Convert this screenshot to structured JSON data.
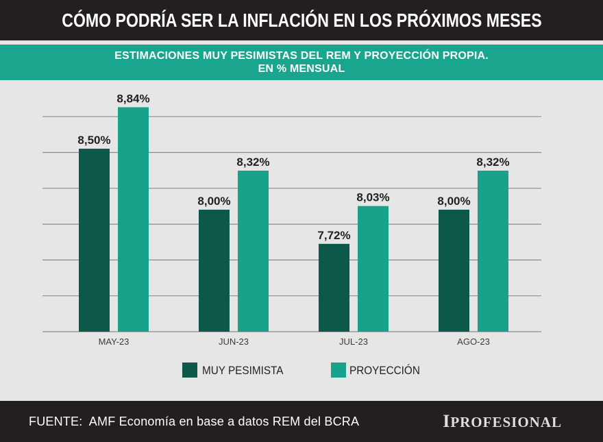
{
  "theme": {
    "header_bg": "#231f20",
    "accent": "#1aa68e",
    "chart_bg": "#e6e6e6",
    "grid": "#8c8c8c"
  },
  "chart_data": {
    "type": "bar",
    "title": "CÓMO PODRÍA SER LA INFLACIÓN EN LOS PRÓXIMOS MESES",
    "subtitle": [
      "ESTIMACIONES MUY PESIMISTAS DEL REM Y PROYECCIÓN PROPIA.",
      "EN % MENSUAL"
    ],
    "categories": [
      "MAY-23",
      "JUN-23",
      "JUL-23",
      "AGO-23"
    ],
    "series": [
      {
        "name": "MUY PESIMISTA",
        "values": [
          8.5,
          8.0,
          7.72,
          8.0
        ],
        "labels": [
          "8,50%",
          "8,00%",
          "7,72%",
          "8,00%"
        ],
        "color": "#0c5849"
      },
      {
        "name": "PROYECCIÓN",
        "values": [
          8.84,
          8.32,
          8.03,
          8.32
        ],
        "labels": [
          "8,84%",
          "8,32%",
          "8,03%",
          "8,32%"
        ],
        "color": "#18a28b"
      }
    ],
    "xlabel": "",
    "ylabel": "",
    "ylim": [
      7,
      9
    ],
    "grid": true,
    "legend": "bottom-center"
  },
  "footer": {
    "source": "FUENTE:  AMF Economía en base a datos REM del BCRA",
    "logo": "IPROFESIONAL"
  }
}
